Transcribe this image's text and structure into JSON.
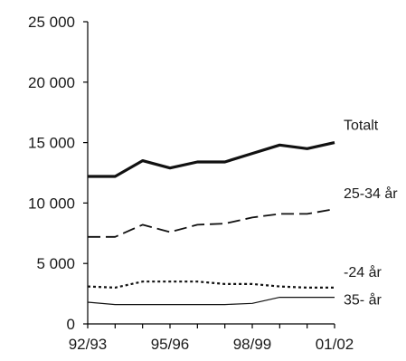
{
  "chart_data": {
    "type": "line",
    "title": "",
    "xlabel": "",
    "ylabel": "",
    "x": [
      "92/93",
      "93/94",
      "94/95",
      "95/96",
      "96/97",
      "97/98",
      "98/99",
      "99/00",
      "00/01",
      "01/02"
    ],
    "x_tick_labels": [
      "92/93",
      "95/96",
      "98/99",
      "01/02"
    ],
    "y_tick_labels": [
      "0",
      "5 000",
      "10 000",
      "15 000",
      "20 000",
      "25 000"
    ],
    "ylim": [
      0,
      25000
    ],
    "grid": false,
    "legend": "labels at right end of lines",
    "series": [
      {
        "name": "Totalt",
        "style": "solid-thick",
        "color": "#111111",
        "values": [
          12200,
          12200,
          13500,
          12900,
          13400,
          13400,
          14100,
          14800,
          14500,
          15000
        ]
      },
      {
        "name": "25-34 år",
        "style": "dashed",
        "color": "#111111",
        "values": [
          7200,
          7200,
          8200,
          7600,
          8200,
          8300,
          8800,
          9100,
          9100,
          9500
        ]
      },
      {
        "name": "-24 år",
        "style": "dotted",
        "color": "#111111",
        "values": [
          3100,
          3000,
          3500,
          3500,
          3500,
          3300,
          3300,
          3100,
          3000,
          3000
        ]
      },
      {
        "name": "35- år",
        "style": "solid-thin",
        "color": "#111111",
        "values": [
          1800,
          1600,
          1600,
          1600,
          1600,
          1600,
          1700,
          2200,
          2200,
          2200
        ]
      }
    ]
  }
}
